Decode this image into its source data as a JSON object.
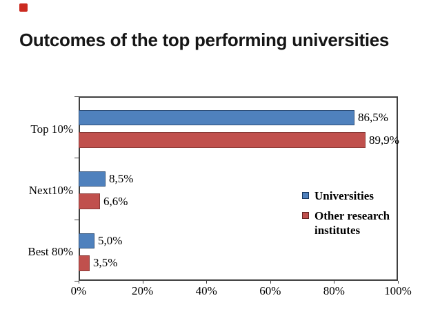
{
  "title": "Outcomes of the top performing universities",
  "chart_data": {
    "type": "bar",
    "orientation": "horizontal",
    "title": "Outcomes of the top performing universities",
    "categories": [
      "Top 10%",
      "Next10%",
      "Best 80%"
    ],
    "series": [
      {
        "name": "Universities",
        "values": [
          86.5,
          8.5,
          5.0
        ],
        "labels": [
          "86,5%",
          "8,5%",
          "5,0%"
        ],
        "fill": "#4f81bd",
        "border": "#2c4d76",
        "swatch_border": "#17375e"
      },
      {
        "name": "Other research institutes",
        "values": [
          89.9,
          6.6,
          3.5
        ],
        "labels": [
          "89,9%",
          "6,6%",
          "3,5%"
        ],
        "fill": "#c0504d",
        "border": "#8a3a37",
        "swatch_border": "#632523"
      }
    ],
    "xlim": [
      0,
      100
    ],
    "x_tick_labels": [
      "0%",
      "20%",
      "40%",
      "60%",
      "80%",
      "100%"
    ],
    "grid": true,
    "legend_position": "right-middle"
  },
  "colors": {
    "background": "#ffffff",
    "grid": "#8a8a8a",
    "axis": "#3f3f3f",
    "text": "#000000",
    "red_mark": "#cb2a20"
  }
}
